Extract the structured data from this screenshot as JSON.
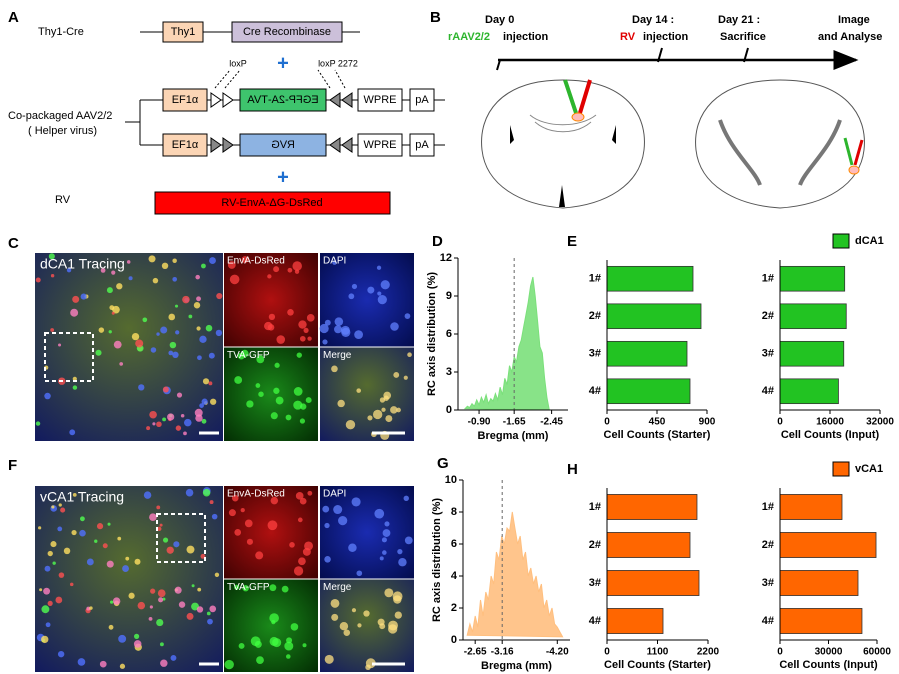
{
  "panel_a": {
    "label": "A",
    "thy1_cre": "Thy1-Cre",
    "thy1": "Thy1",
    "cre": "Cre Recombinase",
    "plus_1": "+",
    "loxp": "loxP",
    "loxp2272": "loxP 2272",
    "copackaged": "Co-packaged AAV2/2",
    "helper": "( Helper virus)",
    "ef1a_1": "EF1α",
    "egfp": "EGFP-2A-TVA",
    "wpre_1": "WPRE",
    "pa_1": "pA",
    "ef1a_2": "EF1α",
    "rvg": "RVG",
    "wpre_2": "WPRE",
    "pa_2": "pA",
    "plus_2": "+",
    "rv": "RV",
    "rv_construct": "RV-EnvA-ΔG-DsRed"
  },
  "panel_b": {
    "label": "B",
    "day0": "Day 0",
    "raav": "rAAV2/2",
    "injection_1": "injection",
    "day14": "Day 14 :",
    "rv": "RV",
    "injection_2": "injection",
    "day21": "Day 21 :",
    "sacrifice": "Sacrifice",
    "image": "Image",
    "analyse": "and Analyse"
  },
  "panel_c": {
    "label": "C",
    "title": "dCA1 Tracing",
    "sub": [
      "EnvA-DsRed",
      "DAPI",
      "TVA-GFP",
      "Merge"
    ]
  },
  "panel_f": {
    "label": "F",
    "title": "vCA1 Tracing",
    "sub": [
      "EnvA-DsRed",
      "DAPI",
      "TVA-GFP",
      "Merge"
    ]
  },
  "chart_data": [
    {
      "type": "area",
      "panel_label": "D",
      "ylabel": "RC axis distribution (%)",
      "xlabel": "Bregma (mm)",
      "color": "#7be07b",
      "x": [
        -0.6,
        -0.65,
        -0.7,
        -0.75,
        -0.8,
        -0.85,
        -0.9,
        -0.95,
        -1.0,
        -1.05,
        -1.1,
        -1.15,
        -1.2,
        -1.25,
        -1.3,
        -1.35,
        -1.4,
        -1.45,
        -1.5,
        -1.55,
        -1.6,
        -1.65,
        -1.7,
        -1.75,
        -1.8,
        -1.85,
        -1.9,
        -1.95,
        -2.0,
        -2.05,
        -2.1,
        -2.15,
        -2.2,
        -2.25,
        -2.3,
        -2.35,
        -2.4
      ],
      "values": [
        0.1,
        0.3,
        0.2,
        0.5,
        0.3,
        0.8,
        0.4,
        1.0,
        0.6,
        1.2,
        0.5,
        0.9,
        0.7,
        1.3,
        0.8,
        1.8,
        1.2,
        2.5,
        2.0,
        3.5,
        3.0,
        4.2,
        3.8,
        5.0,
        5.5,
        6.5,
        7.5,
        8.5,
        9.8,
        10.5,
        9.0,
        7.0,
        5.0,
        4.5,
        2.5,
        1.0,
        0
      ],
      "xlim": [
        -0.45,
        -2.8
      ],
      "ylim": [
        0,
        12
      ],
      "xticks": [
        {
          "value": -0.9,
          "label": "-0.90"
        },
        -1.65,
        -2.45
      ],
      "yticks": [
        0,
        3,
        6,
        9,
        12
      ],
      "vline": -1.65
    },
    {
      "type": "bar",
      "panel_label": "E",
      "xlabel": "Cell Counts (Starter)",
      "categories": [
        "1#",
        "2#",
        "3#",
        "4#"
      ],
      "series": [
        {
          "name": "dCA1",
          "color": "#22c322",
          "values": [
            774,
            846,
            720,
            747
          ]
        }
      ],
      "xlim": [
        0,
        900
      ],
      "xticks": [
        0,
        450,
        900
      ]
    },
    {
      "type": "bar",
      "xlabel": "Cell Counts (Input)",
      "categories": [
        "1#",
        "2#",
        "3#",
        "4#"
      ],
      "series": [
        {
          "color": "#22c322",
          "values": [
            20700,
            21200,
            20400,
            18700
          ]
        }
      ],
      "xlim": [
        0,
        32000
      ],
      "xticks": [
        0,
        16000,
        32000
      ]
    },
    {
      "type": "area",
      "panel_label": "G",
      "ylabel": "RC axis distribution (%)",
      "xlabel": "Bregma (mm)",
      "color": "#ffbf7f",
      "x": [
        -2.5,
        -2.55,
        -2.6,
        -2.65,
        -2.7,
        -2.75,
        -2.8,
        -2.85,
        -2.9,
        -2.95,
        -3.0,
        -3.05,
        -3.1,
        -3.15,
        -3.2,
        -3.25,
        -3.3,
        -3.35,
        -3.4,
        -3.45,
        -3.5,
        -3.55,
        -3.6,
        -3.65,
        -3.7,
        -3.75,
        -3.8,
        -3.85,
        -3.9,
        -3.95,
        -4.0,
        -4.05,
        -4.1,
        -4.15,
        -4.2,
        -4.25,
        -4.3
      ],
      "values": [
        0.3,
        1.0,
        0.5,
        1.5,
        0.8,
        2.5,
        1.5,
        3.0,
        2.5,
        4.0,
        3.5,
        5.5,
        5.0,
        6.5,
        6.0,
        7.0,
        6.8,
        8.0,
        7.0,
        6.0,
        6.5,
        5.0,
        5.5,
        4.0,
        4.5,
        3.5,
        4.0,
        3.0,
        3.5,
        2.0,
        2.5,
        1.5,
        2.0,
        1.0,
        0.8,
        0.5,
        0.2
      ],
      "xlim": [
        -2.42,
        -4.44
      ],
      "ylim": [
        0,
        10
      ],
      "xticks": [
        -2.65,
        -3.16,
        {
          "value": -4.2,
          "label": "-4.20"
        }
      ],
      "yticks": [
        0,
        2,
        4,
        6,
        8,
        10
      ],
      "vline": -3.16
    },
    {
      "type": "bar",
      "panel_label": "H",
      "xlabel": "Cell Counts (Starter)",
      "categories": [
        "1#",
        "2#",
        "3#",
        "4#"
      ],
      "series": [
        {
          "name": "vCA1",
          "color": "#ff6600",
          "values": [
            1960,
            1808,
            2004,
            1220
          ]
        }
      ],
      "xlim": [
        0,
        2200
      ],
      "xticks": [
        0,
        1100,
        2200
      ]
    },
    {
      "type": "bar",
      "xlabel": "Cell Counts (Input)",
      "categories": [
        "1#",
        "2#",
        "3#",
        "4#"
      ],
      "series": [
        {
          "color": "#ff6600",
          "values": [
            38350,
            59400,
            48250,
            50700
          ]
        }
      ],
      "xlim": [
        0,
        60000
      ],
      "xticks": [
        0,
        30000,
        60000
      ]
    }
  ]
}
